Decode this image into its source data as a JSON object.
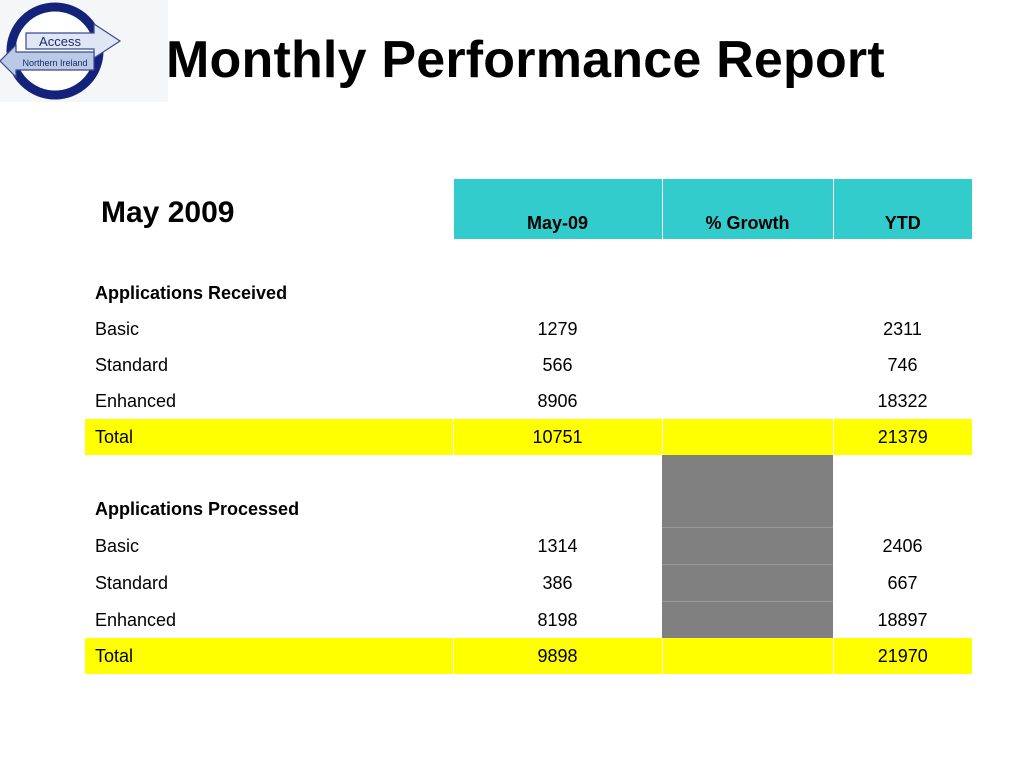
{
  "logo": {
    "line1": "Access",
    "line2": "Northern Ireland",
    "ring_color": "#13237a",
    "arrow_color": "#b9c9e6"
  },
  "title": "Monthly Performance Report",
  "period": "May 2009",
  "columns": [
    "May-09",
    "% Growth",
    "YTD"
  ],
  "colors": {
    "header": "#33cccc",
    "total": "#ffff00",
    "shaded": "#808080"
  },
  "received": {
    "heading": "Applications Received",
    "rows": [
      {
        "label": "Basic",
        "month": "1279",
        "growth": "",
        "ytd": "2311"
      },
      {
        "label": "Standard",
        "month": "566",
        "growth": "",
        "ytd": "746"
      },
      {
        "label": "Enhanced",
        "month": "8906",
        "growth": "",
        "ytd": "18322"
      }
    ],
    "total": {
      "label": "Total",
      "month": "10751",
      "growth": "",
      "ytd": "21379"
    }
  },
  "processed": {
    "heading": "Applications Processed",
    "rows": [
      {
        "label": "Basic",
        "month": "1314",
        "growth": "",
        "ytd": "2406"
      },
      {
        "label": "Standard",
        "month": "386",
        "growth": "",
        "ytd": "667"
      },
      {
        "label": "Enhanced",
        "month": "8198",
        "growth": "",
        "ytd": "18897"
      }
    ],
    "total": {
      "label": "Total",
      "month": "9898",
      "growth": "",
      "ytd": "21970"
    }
  }
}
